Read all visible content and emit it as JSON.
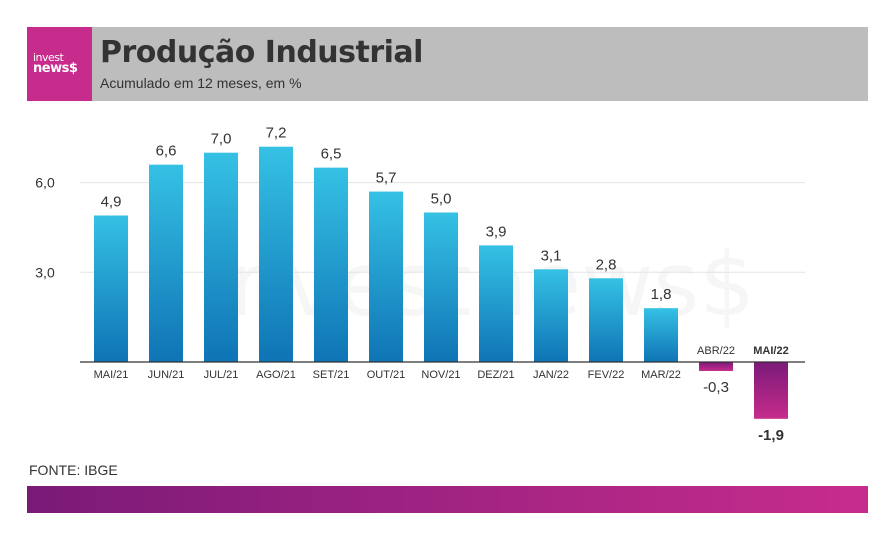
{
  "brand": {
    "line1": "invest",
    "line2": "news$"
  },
  "header": {
    "title": "Produção Industrial",
    "subtitle": "Acumulado em 12 meses, em %"
  },
  "source": "FONTE: IBGE",
  "watermark": "investnews$",
  "colors": {
    "bar_top": "#35c1e4",
    "bar_bottom": "#0f74b5",
    "neg_top": "#7a1a78",
    "neg_bottom": "#c72c8c",
    "header_bg": "#bdbdbd",
    "brand": "#c72c8c"
  },
  "chart_data": {
    "type": "bar",
    "categories": [
      "MAI/21",
      "JUN/21",
      "JUL/21",
      "AGO/21",
      "SET/21",
      "OUT/21",
      "NOV/21",
      "DEZ/21",
      "JAN/22",
      "FEV/22",
      "MAR/22",
      "ABR/22",
      "MAI/22"
    ],
    "values": [
      4.9,
      6.6,
      7.0,
      7.2,
      6.5,
      5.7,
      5.0,
      3.9,
      3.1,
      2.8,
      1.8,
      -0.3,
      -1.9
    ],
    "value_labels": [
      "4,9",
      "6,6",
      "7,0",
      "7,2",
      "6,5",
      "5,7",
      "5,0",
      "3,9",
      "3,1",
      "2,8",
      "1,8",
      "-0,3",
      "-1,9"
    ],
    "highlight_category": "MAI/22",
    "yticks": [
      3.0,
      6.0
    ],
    "ytick_labels": [
      "3,0",
      "6,0"
    ],
    "ylim": [
      -2.0,
      7.8
    ],
    "grid": true,
    "xlabel": "",
    "ylabel": ""
  }
}
